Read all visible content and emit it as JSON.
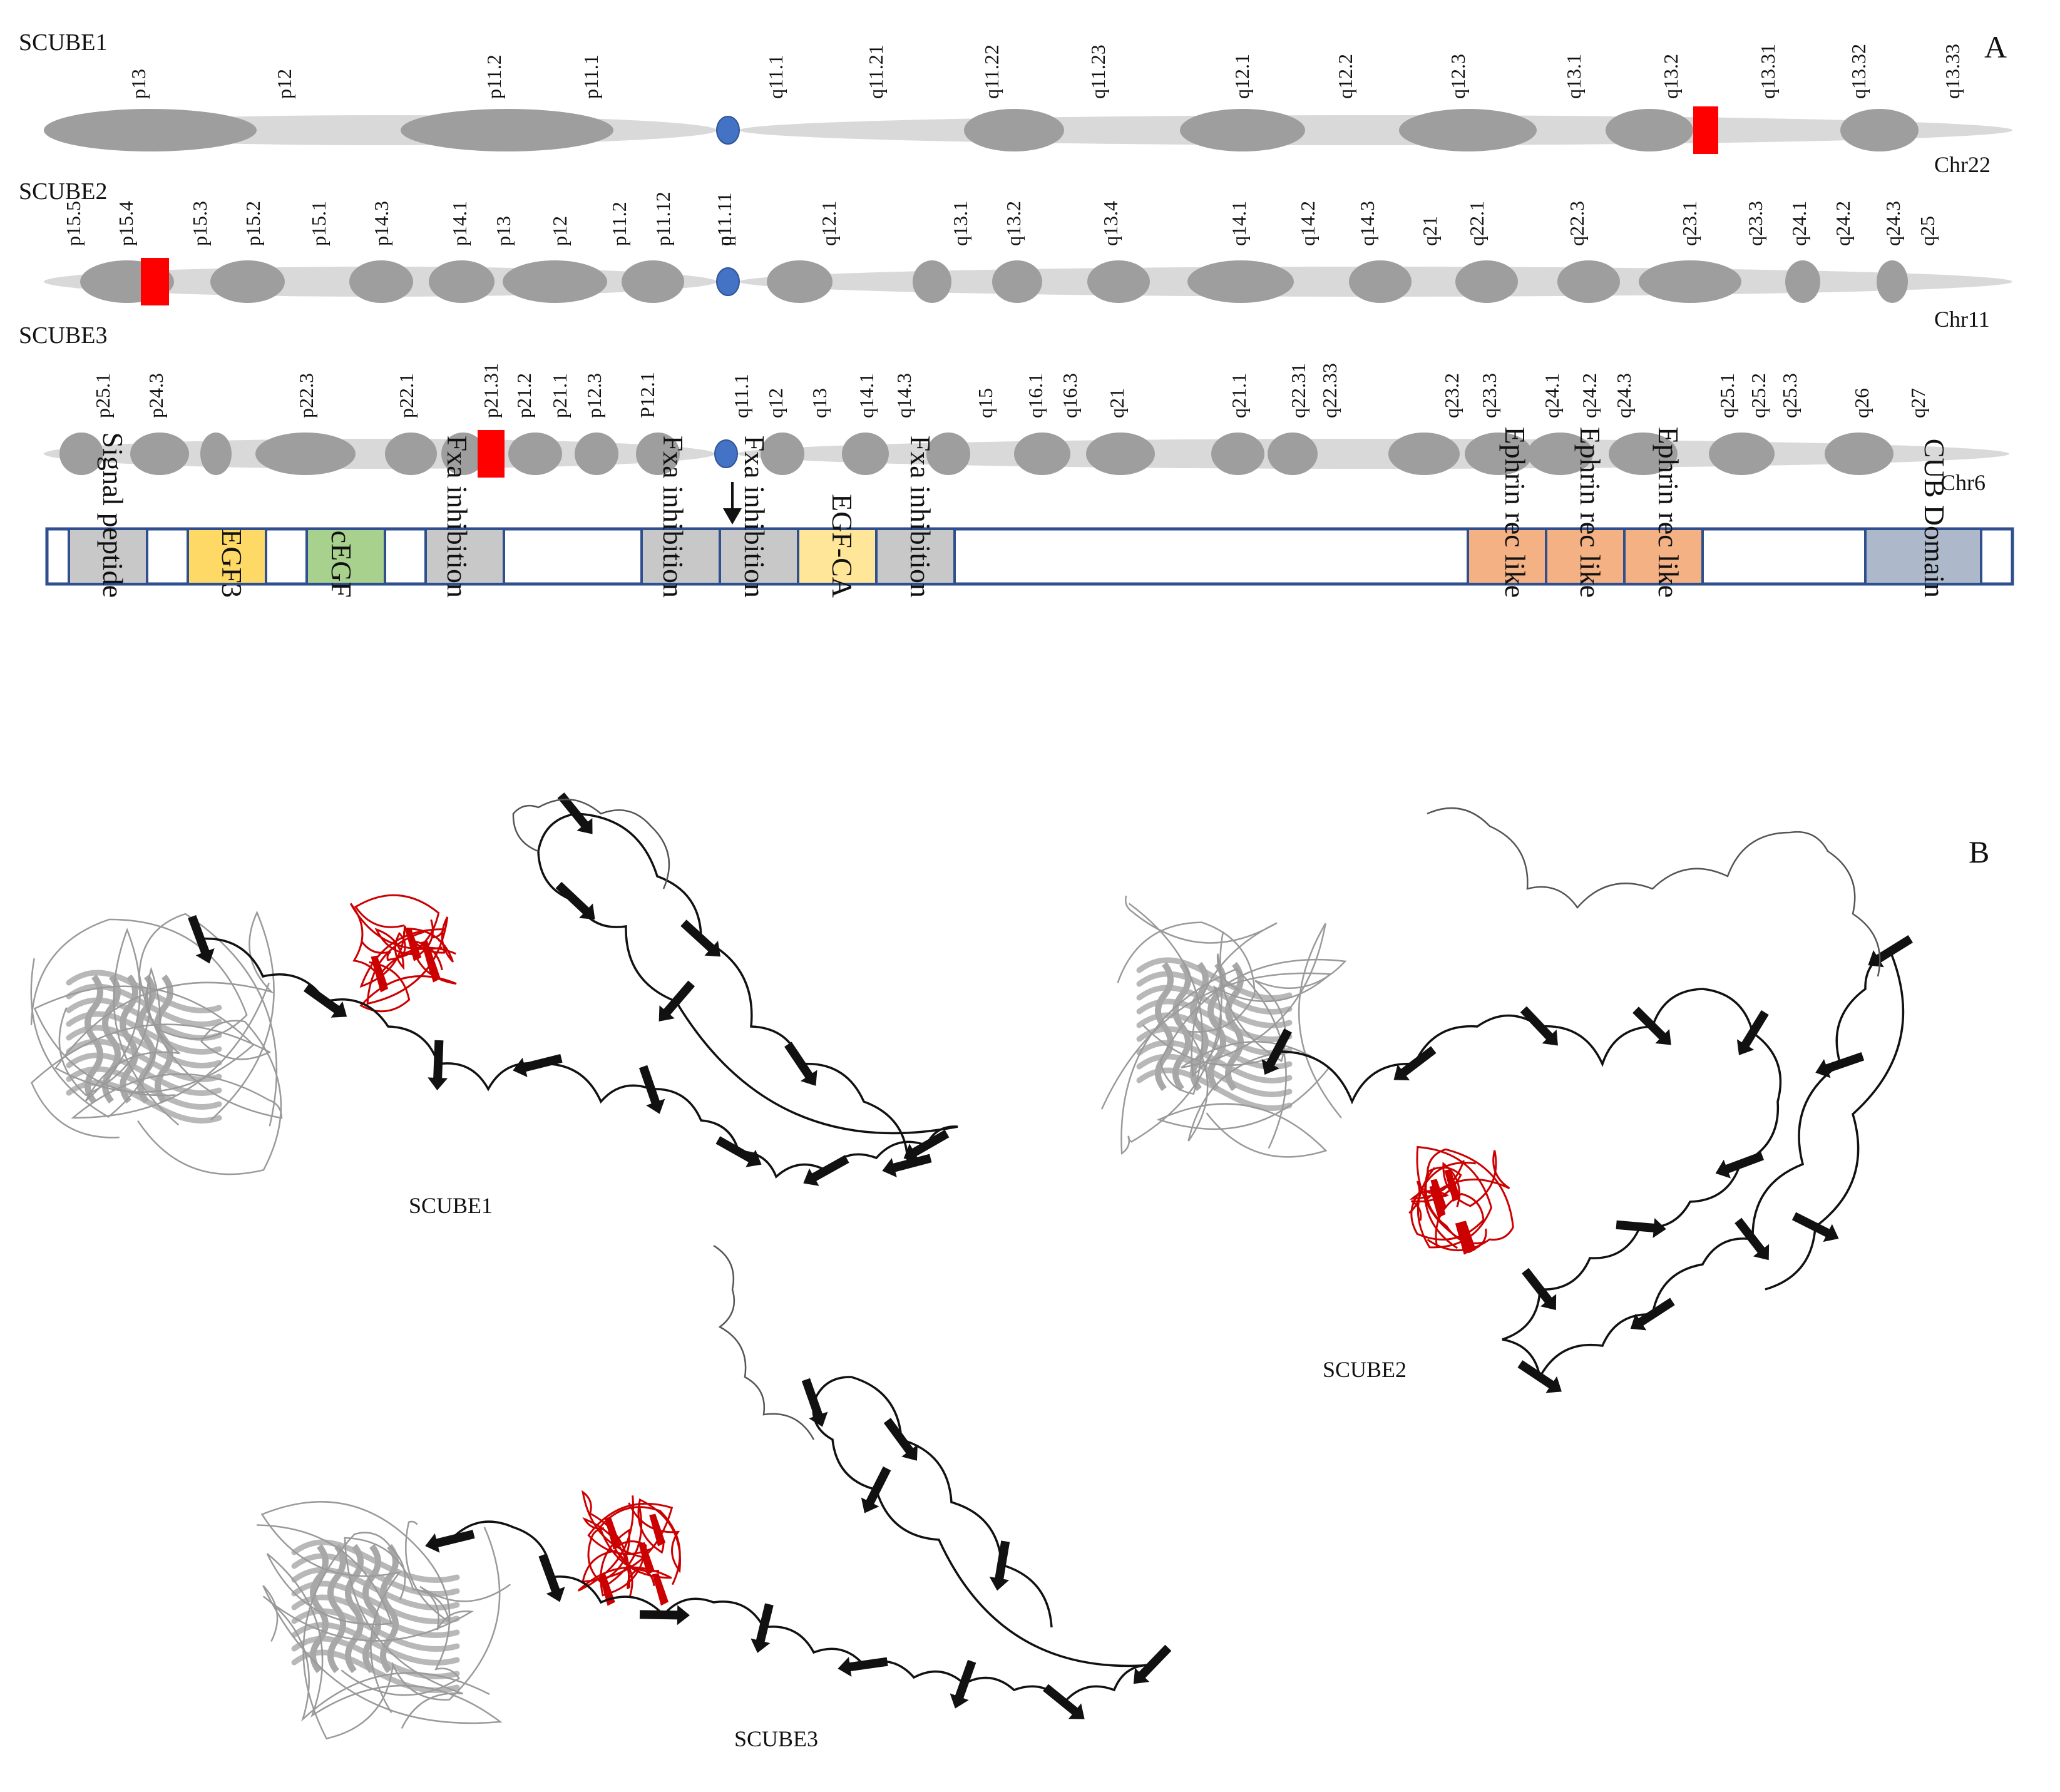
{
  "panel_labels": {
    "a": "A",
    "b": "B"
  },
  "chromosomes": [
    {
      "gene": "SCUBE1",
      "chromosome": "Chr22",
      "bands": [
        "p13",
        "p12",
        "p11.2",
        "p11.1",
        "q11.1",
        "q11.21",
        "q11.22",
        "q11.23",
        "q12.1",
        "q12.2",
        "q12.3",
        "q13.1",
        "q13.2",
        "q13.31",
        "q13.32",
        "q13.33"
      ],
      "marker_band": "q13.2"
    },
    {
      "gene": "SCUBE2",
      "chromosome": "Chr11",
      "bands": [
        "p15.5",
        "p15.4",
        "p15.3",
        "p15.2",
        "p15.1",
        "p14.3",
        "p14.1",
        "p13",
        "p12",
        "p11.2",
        "p11.12",
        "p11.11",
        "q11",
        "q12.1",
        "q13.1",
        "q13.2",
        "q13.4",
        "q14.1",
        "q14.2",
        "q14.3",
        "q21",
        "q22.1",
        "q22.3",
        "q23.1",
        "q23.3",
        "q24.1",
        "q24.2",
        "q24.3",
        "q25"
      ],
      "marker_band": "p15.4"
    },
    {
      "gene": "SCUBE3",
      "chromosome": "Chr6",
      "bands": [
        "p25.1",
        "p24.3",
        "p22.3",
        "p22.1",
        "p21.31",
        "p21.2",
        "p21.1",
        "p12.3",
        "P12.1",
        "q11.1",
        "q12",
        "q13",
        "q14.1",
        "q14.3",
        "q15",
        "q16.1",
        "q16.3",
        "q21",
        "q21.1",
        "q22.31",
        "q22.33",
        "q23.2",
        "q23.3",
        "q24.1",
        "q24.2",
        "q24.3",
        "q25.1",
        "q25.2",
        "q25.3",
        "q26",
        "q27"
      ],
      "marker_band": "p21.31"
    }
  ],
  "domains": [
    {
      "label": "Signal peptide",
      "color": "#c8c8c8"
    },
    {
      "label": "EGF3",
      "color": "#ffd966"
    },
    {
      "label": "cEGF",
      "color": "#a9d18e"
    },
    {
      "label": "Fxa inhibition",
      "color": "#c8c8c8"
    },
    {
      "label": "Fxa inhibition",
      "color": "#c8c8c8"
    },
    {
      "label": "Fxa inhibition",
      "color": "#c8c8c8"
    },
    {
      "label": "EGF-CA",
      "color": "#ffe699"
    },
    {
      "label": "Fxa inhibition",
      "color": "#c8c8c8"
    },
    {
      "label": "Ephrin rec like",
      "color": "#f4b183"
    },
    {
      "label": "Ephrin rec like",
      "color": "#f4b183"
    },
    {
      "label": "Ephrin rec like",
      "color": "#f4b183"
    },
    {
      "label": "CUB Domain",
      "color": "#adb9ca"
    }
  ],
  "structures": [
    {
      "label": "SCUBE1"
    },
    {
      "label": "SCUBE2"
    },
    {
      "label": "SCUBE3"
    }
  ],
  "colors": {
    "chromosome": "#d9d9d9",
    "band": "#9e9e9e",
    "centromere": "#4472c4",
    "marker": "#ff0000",
    "domain_border": "#2f4f8f",
    "helix": "#b8b8b8",
    "strand": "#111111",
    "highlight": "#cc0000"
  }
}
